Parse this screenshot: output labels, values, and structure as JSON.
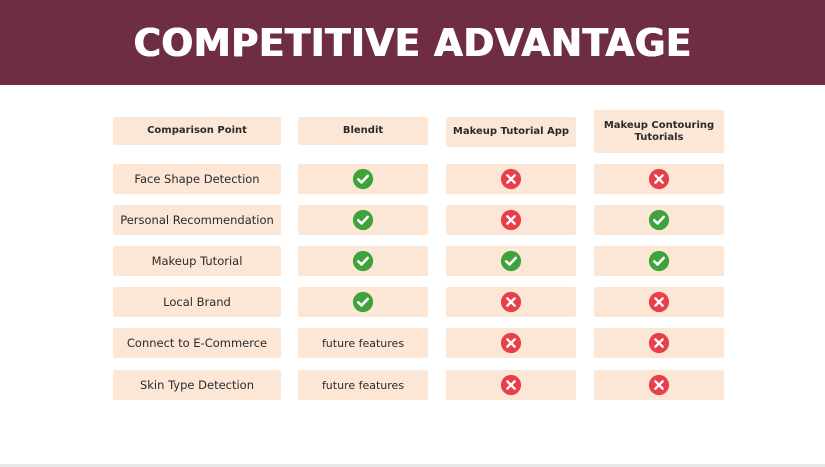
{
  "title": "COMPETITIVE ADVANTAGE",
  "colors": {
    "banner": "#6e2d44",
    "cell": "#fce6d6",
    "check": "#3fa23a",
    "cross": "#e8404a"
  },
  "columns": [
    "Comparison Point",
    "Blendit",
    "Makeup Tutorial App",
    "Makeup Contouring Tutorials"
  ],
  "rows": [
    {
      "label": "Face Shape Detection",
      "values": [
        "check",
        "cross",
        "cross"
      ]
    },
    {
      "label": "Personal Recommendation",
      "values": [
        "check",
        "cross",
        "check"
      ]
    },
    {
      "label": "Makeup Tutorial",
      "values": [
        "check",
        "check",
        "check"
      ]
    },
    {
      "label": "Local Brand",
      "values": [
        "check",
        "cross",
        "cross"
      ]
    },
    {
      "label": "Connect to E-Commerce",
      "values": [
        "future features",
        "cross",
        "cross"
      ]
    },
    {
      "label": "Skin Type Detection",
      "values": [
        "future features",
        "cross",
        "cross"
      ]
    }
  ]
}
